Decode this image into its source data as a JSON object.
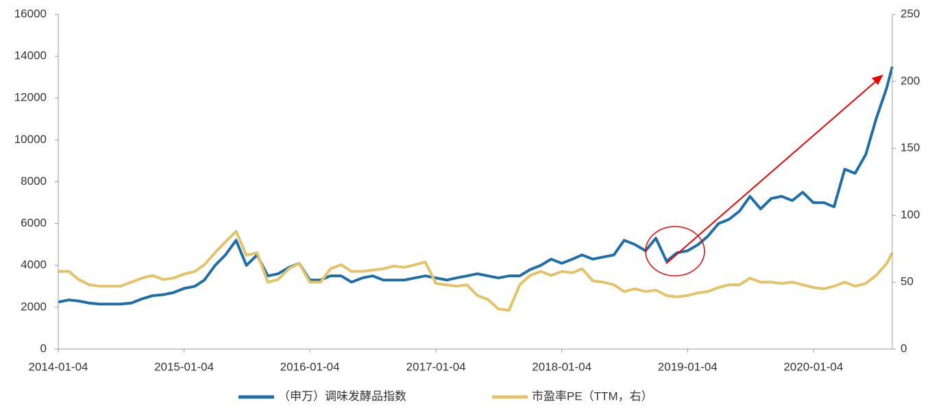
{
  "chart_data": {
    "type": "line",
    "x": [
      "2014-01-04",
      "2014-02-04",
      "2014-03-04",
      "2014-04-04",
      "2014-05-04",
      "2014-06-04",
      "2014-07-04",
      "2014-08-04",
      "2014-09-04",
      "2014-10-04",
      "2014-11-04",
      "2014-12-04",
      "2015-01-04",
      "2015-02-04",
      "2015-03-04",
      "2015-04-04",
      "2015-05-04",
      "2015-06-04",
      "2015-07-04",
      "2015-08-04",
      "2015-09-04",
      "2015-10-04",
      "2015-11-04",
      "2015-12-04",
      "2016-01-04",
      "2016-02-04",
      "2016-03-04",
      "2016-04-04",
      "2016-05-04",
      "2016-06-04",
      "2016-07-04",
      "2016-08-04",
      "2016-09-04",
      "2016-10-04",
      "2016-11-04",
      "2016-12-04",
      "2017-01-04",
      "2017-02-04",
      "2017-03-04",
      "2017-04-04",
      "2017-05-04",
      "2017-06-04",
      "2017-07-04",
      "2017-08-04",
      "2017-09-04",
      "2017-10-04",
      "2017-11-04",
      "2017-12-04",
      "2018-01-04",
      "2018-02-04",
      "2018-03-04",
      "2018-04-04",
      "2018-05-04",
      "2018-06-04",
      "2018-07-04",
      "2018-08-04",
      "2018-09-04",
      "2018-10-04",
      "2018-11-04",
      "2018-12-04",
      "2019-01-04",
      "2019-02-04",
      "2019-03-04",
      "2019-04-04",
      "2019-05-04",
      "2019-06-04",
      "2019-07-04",
      "2019-08-04",
      "2019-09-04",
      "2019-10-04",
      "2019-11-04",
      "2019-12-04",
      "2020-01-04",
      "2020-02-04",
      "2020-03-04",
      "2020-04-04",
      "2020-05-04",
      "2020-06-04",
      "2020-07-04",
      "2020-08-04",
      "2020-08-20"
    ],
    "series": [
      {
        "name": "（申万）调味发酵品指数",
        "color": "#1f6ea6",
        "values": [
          2250,
          2350,
          2300,
          2200,
          2150,
          2150,
          2150,
          2200,
          2400,
          2550,
          2600,
          2700,
          2900,
          3000,
          3300,
          4000,
          4500,
          5200,
          4000,
          4500,
          3500,
          3600,
          3900,
          4100,
          3300,
          3300,
          3500,
          3500,
          3200,
          3400,
          3500,
          3300,
          3300,
          3300,
          3400,
          3500,
          3400,
          3300,
          3400,
          3500,
          3600,
          3500,
          3400,
          3500,
          3500,
          3800,
          4000,
          4300,
          4100,
          4300,
          4500,
          4300,
          4400,
          4500,
          5200,
          5000,
          4700,
          5300,
          4200,
          4600,
          4700,
          5000,
          5400,
          6000,
          6200,
          6600,
          7300,
          6700,
          7200,
          7300,
          7100,
          7500,
          7000,
          7000,
          6800,
          8600,
          8400,
          9300,
          11000,
          12500,
          13500
        ]
      },
      {
        "name": "市盈率PE（TTM，右）",
        "color": "#e3c36a",
        "axis": "y2",
        "values": [
          58,
          58,
          52,
          48,
          47,
          47,
          47,
          50,
          53,
          55,
          52,
          53,
          56,
          58,
          63,
          72,
          80,
          88,
          70,
          72,
          50,
          52,
          60,
          64,
          50,
          50,
          60,
          63,
          58,
          58,
          59,
          60,
          62,
          61,
          63,
          65,
          49,
          48,
          47,
          48,
          40,
          37,
          30,
          29,
          48,
          55,
          58,
          55,
          58,
          57,
          60,
          51,
          50,
          48,
          43,
          45,
          43,
          44,
          40,
          39,
          40,
          42,
          43,
          46,
          48,
          48,
          53,
          50,
          50,
          49,
          50,
          48,
          46,
          45,
          47,
          50,
          47,
          49,
          55,
          64,
          72
        ]
      }
    ],
    "xlim": [
      "2014-01-04",
      "2020-08-20"
    ],
    "xticks": [
      "2014-01-04",
      "2015-01-04",
      "2016-01-04",
      "2017-01-04",
      "2018-01-04",
      "2019-01-04",
      "2020-01-04"
    ],
    "ylim": [
      0,
      16000
    ],
    "yticks": [
      0,
      2000,
      4000,
      6000,
      8000,
      10000,
      12000,
      14000,
      16000
    ],
    "y2lim": [
      0,
      250
    ],
    "y2ticks": [
      0,
      50,
      100,
      150,
      200,
      250
    ]
  }
}
